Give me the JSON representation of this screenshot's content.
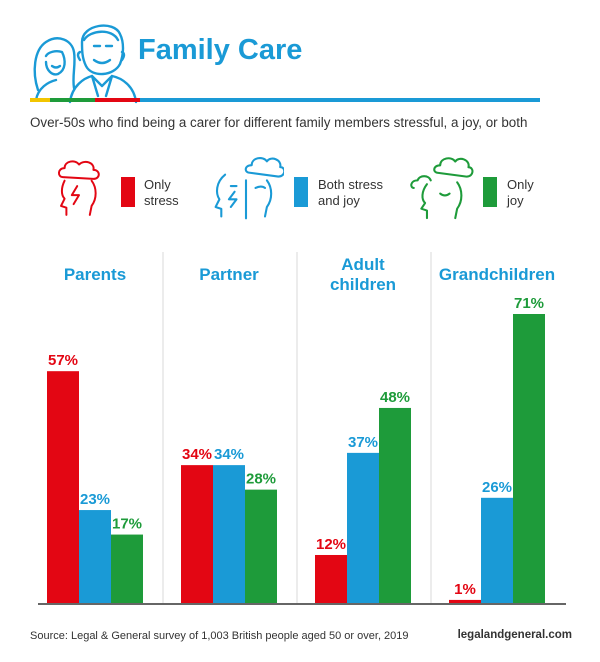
{
  "header": {
    "title": "Family Care",
    "subtitle": "Over-50s who find being a carer for different family members stressful, a joy, or both",
    "accent_blue": "#1a9ad6",
    "rule_colors": [
      "#f2c500",
      "#1e9b3a",
      "#e30613",
      "#1a9ad6"
    ]
  },
  "legend": [
    {
      "label_line1": "Only",
      "label_line2": "stress",
      "color": "#e30613",
      "icon": "stormy-head-icon"
    },
    {
      "label_line1": "Both stress",
      "label_line2": "and joy",
      "color": "#1a9ad6",
      "icon": "split-face-icon"
    },
    {
      "label_line1": "Only",
      "label_line2": "joy",
      "color": "#1e9b3a",
      "icon": "calm-head-icon"
    }
  ],
  "chart_data": {
    "type": "bar",
    "title": "Family Care",
    "categories": [
      "Parents",
      "Partner",
      "Adult children",
      "Grandchildren"
    ],
    "category_display": [
      [
        "Parents"
      ],
      [
        "Partner"
      ],
      [
        "Adult",
        "children"
      ],
      [
        "Grandchildren"
      ]
    ],
    "series": [
      {
        "name": "Only stress",
        "color": "#e30613",
        "values": [
          57,
          34,
          12,
          1
        ]
      },
      {
        "name": "Both stress and joy",
        "color": "#1a9ad6",
        "values": [
          23,
          34,
          37,
          26
        ]
      },
      {
        "name": "Only joy",
        "color": "#1e9b3a",
        "values": [
          17,
          28,
          48,
          71
        ]
      }
    ],
    "value_suffix": "%",
    "ylim": [
      0,
      71
    ],
    "xlabel": "",
    "ylabel": ""
  },
  "footer": {
    "source": "Source: Legal & General survey of 1,003 British people aged 50 or over, 2019",
    "site": "legalandgeneral.com"
  }
}
